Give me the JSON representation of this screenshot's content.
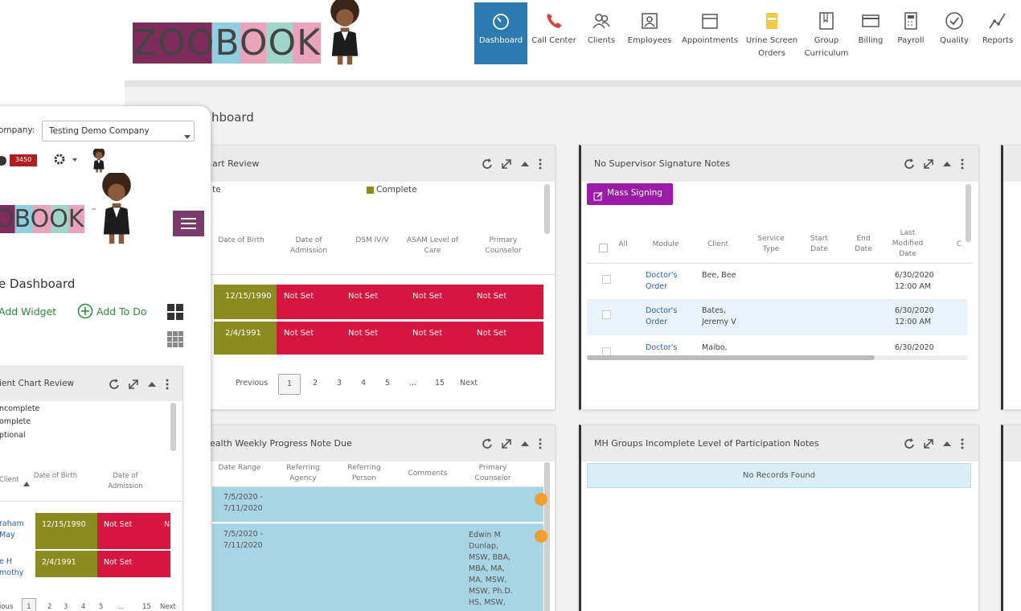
{
  "header": {
    "logo": "ZOOBOOK",
    "trademark": "™",
    "nav": [
      "Dashboard",
      "Call Center",
      "Clients",
      "Employees",
      "Appointments",
      "Urine Screen Orders",
      "Group Curriculum",
      "Billing",
      "Payroll",
      "Quality",
      "Reports"
    ]
  },
  "page_title": "hboard",
  "widgets": [
    {
      "title": "art Review",
      "legend": [
        "te",
        "Complete"
      ],
      "columns": [
        "Date of Birth",
        "Date of Admission",
        "DSM IV/V",
        "ASAM Level of Care",
        "Primary Counselor"
      ],
      "rows": [
        [
          "12/15/1990",
          "Not Set",
          "Not Set",
          "Not Set",
          "Not Set"
        ],
        [
          "2/4/1991",
          "Not Set",
          "Not Set",
          "Not Set",
          "Not Set"
        ]
      ],
      "pagination": [
        "Previous",
        "1",
        "2",
        "3",
        "4",
        "5",
        "...",
        "15",
        "Next"
      ]
    },
    {
      "title": "No Supervisor Signature Notes",
      "button": "Mass Signing",
      "columns": [
        "All",
        "Module",
        "Client",
        "Service Type",
        "Start Date",
        "End Date",
        "Last Modified Date",
        "C"
      ],
      "rows": [
        [
          "Doctor's Order",
          "Bee, Bee",
          "6/30/2020 12:00 AM"
        ],
        [
          "Doctor's Order",
          "Bates, Jeremy V",
          "6/30/2020 12:00 AM"
        ],
        [
          "Doctor's",
          "Maibo,",
          "6/30/2020"
        ]
      ]
    },
    {
      "title": "ealth Weekly Progress Note Due",
      "columns": [
        "Date Range",
        "Referring Agency",
        "Referring Person",
        "Comments",
        "Primary Counselor"
      ],
      "rows": [
        {
          "date_range": "7/5/2020 - 7/11/2020"
        },
        {
          "date_range": "7/5/2020 - 7/11/2020",
          "primary_counselor": "Edwin M Dunlap, MSW, BBA, MBA, MA, MA, MSW, MSW, Ph.D. HS, MSW,"
        }
      ]
    },
    {
      "title": "MH Groups Incomplete Level of Participation Notes",
      "message": "No Records Found"
    }
  ],
  "mobile": {
    "company_label": "ompany:",
    "company_value": "Testing Demo Company",
    "badge": "3450",
    "logo": "OBOOK",
    "trademark": "™",
    "title": "e Dashboard",
    "add_widget": "Add Widget",
    "add_todo": "Add To Do",
    "widget": {
      "title": "ient Chart Review",
      "legend": [
        "ncomplete",
        "omplete",
        "ptional"
      ],
      "columns": [
        "Client",
        "Date of Birth",
        "Date of Admission"
      ],
      "rows": [
        [
          "raham May",
          "12/15/1990",
          "Not Set",
          "N"
        ],
        [
          "e H mothy",
          "2/4/1991",
          "Not Set"
        ]
      ],
      "pagination": [
        "ious",
        "1",
        "2",
        "3",
        "4",
        "5",
        "...",
        "15",
        "Next"
      ]
    }
  }
}
